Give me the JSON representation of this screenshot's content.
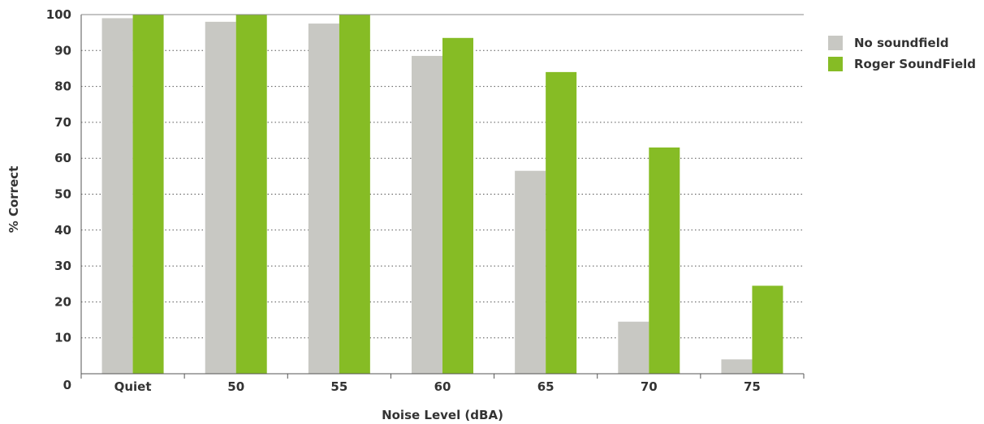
{
  "chart_data": {
    "type": "bar",
    "categories": [
      "Quiet",
      "50",
      "55",
      "60",
      "65",
      "70",
      "75"
    ],
    "series": [
      {
        "name": "No soundfield",
        "color": "#c8c8c3",
        "values": [
          99,
          98,
          97.5,
          88.5,
          56.5,
          14.5,
          4
        ]
      },
      {
        "name": "Roger SoundField",
        "color": "#86bc25",
        "values": [
          100,
          100,
          100,
          93.5,
          84,
          63,
          24.5
        ]
      }
    ],
    "yticks": [
      "0",
      "10",
      "20",
      "30",
      "40",
      "50",
      "60",
      "70",
      "80",
      "90",
      "100"
    ],
    "ylim": [
      0,
      100
    ],
    "xlabel": "Noise Level (dBA)",
    "ylabel": "% Correct",
    "grid": true,
    "legend_position": "top-right"
  }
}
